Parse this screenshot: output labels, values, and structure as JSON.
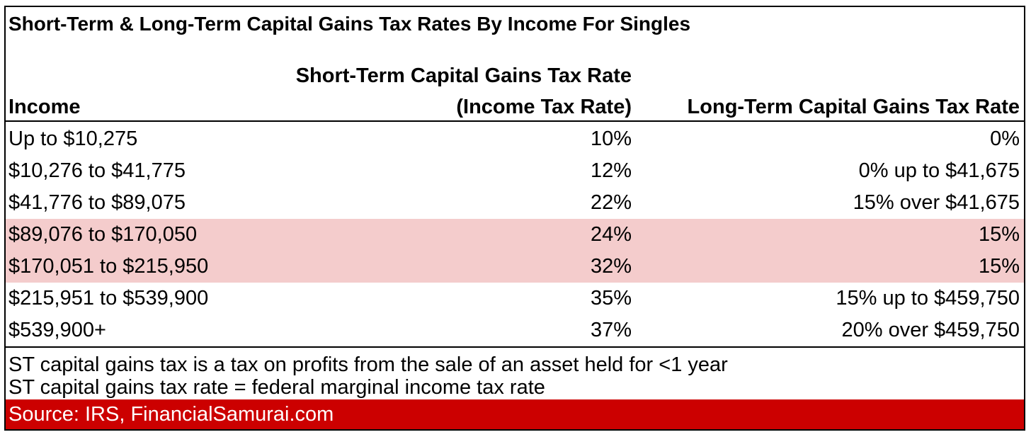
{
  "title": "Short-Term & Long-Term Capital Gains Tax Rates By Income For Singles",
  "headers": {
    "income": "Income",
    "st_line1": "Short-Term Capital Gains Tax Rate",
    "st_line2": "(Income Tax Rate)",
    "lt": "Long-Term Capital Gains Tax Rate"
  },
  "rows": [
    {
      "income": "Up to $10,275",
      "st": "10%",
      "lt": "0%",
      "highlight": false
    },
    {
      "income": "$10,276 to $41,775",
      "st": "12%",
      "lt": "0% up to $41,675",
      "highlight": false
    },
    {
      "income": "$41,776 to $89,075",
      "st": "22%",
      "lt": "15% over $41,675",
      "highlight": false
    },
    {
      "income": "$89,076 to $170,050",
      "st": "24%",
      "lt": "15%",
      "highlight": true
    },
    {
      "income": "$170,051 to $215,950",
      "st": "32%",
      "lt": "15%",
      "highlight": true
    },
    {
      "income": "$215,951 to $539,900",
      "st": "35%",
      "lt": "15% up to $459,750",
      "highlight": false
    },
    {
      "income": "$539,900+",
      "st": "37%",
      "lt": "20% over $459,750",
      "highlight": false
    }
  ],
  "notes": [
    "ST capital gains tax is a tax on profits from the sale of an asset held for <1 year",
    "ST capital gains tax rate = federal marginal income tax rate"
  ],
  "source": "Source: IRS, FinancialSamurai.com",
  "colors": {
    "highlight": "#f4cccc",
    "source_bar": "#cc0000",
    "source_text": "#ffffff",
    "border": "#000000"
  }
}
